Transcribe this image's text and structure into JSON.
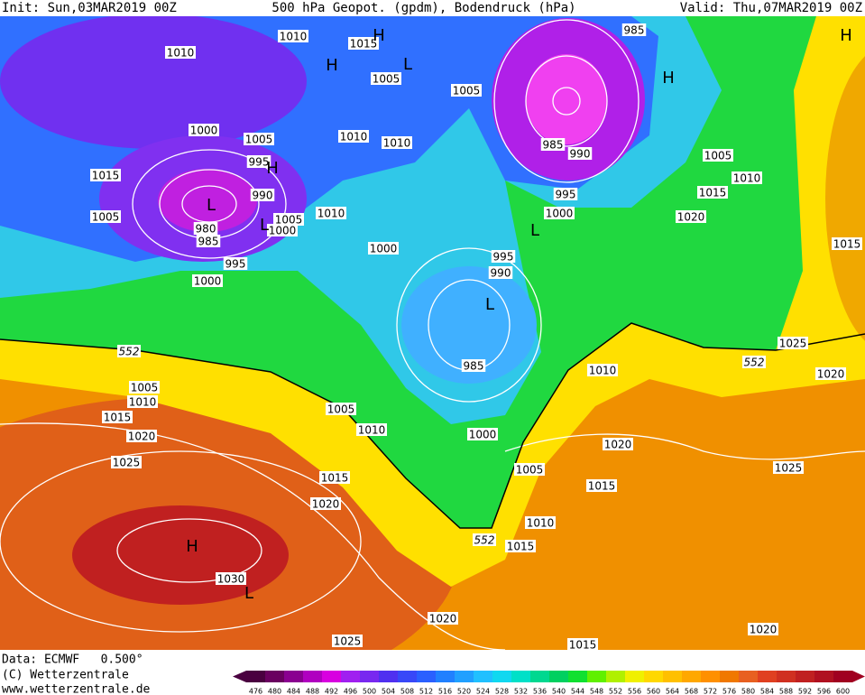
{
  "header": {
    "init": "Init: Sun,03MAR2019 00Z",
    "title": "500 hPa Geopot. (gpdm), Bodendruck (hPa)",
    "valid": "Valid: Thu,07MAR2019 00Z"
  },
  "footer": {
    "data": "Data: ECMWF   0.500°",
    "copyright": "(C) Wetterzentrale",
    "url": "www.wetterzentrale.de"
  },
  "colorbar": {
    "ticks": [
      476,
      480,
      484,
      488,
      492,
      496,
      500,
      504,
      508,
      512,
      516,
      520,
      524,
      528,
      532,
      536,
      540,
      544,
      548,
      552,
      556,
      560,
      564,
      568,
      572,
      576,
      580,
      584,
      588,
      592,
      596,
      600
    ],
    "colors": [
      "#4a0040",
      "#6a0060",
      "#8a0090",
      "#b000c0",
      "#d800e0",
      "#a020f0",
      "#7828f0",
      "#5030f0",
      "#3848f8",
      "#2a60ff",
      "#2080ff",
      "#20a0ff",
      "#20c0ff",
      "#10d8f0",
      "#00e0c8",
      "#00d890",
      "#00d060",
      "#10e030",
      "#60f000",
      "#b0f000",
      "#f0f000",
      "#ffd800",
      "#ffc000",
      "#ffa800",
      "#ff9000",
      "#f07800",
      "#e86020",
      "#e04020",
      "#d03020",
      "#c02020",
      "#b01020",
      "#a00020"
    ]
  },
  "isobar_labels": [
    1010,
    1015,
    1010,
    1005,
    1005,
    985,
    1000,
    1005,
    1010,
    1010,
    995,
    985,
    990,
    1005,
    1015,
    990,
    995,
    1010,
    1015,
    1005,
    1005,
    1000,
    1010,
    1000,
    1020,
    980,
    985,
    1015,
    1000,
    995,
    995,
    990,
    1000,
    1025,
    985,
    1010,
    1020,
    1005,
    1010,
    1015,
    1005,
    1010,
    1020,
    1000,
    1020,
    1025,
    1005,
    1015,
    1015,
    1025,
    1020,
    1010,
    1015,
    1030,
    1020,
    1020,
    1025,
    1015
  ],
  "contour_552_labels": [
    552,
    552,
    552
  ],
  "pressure_centers": [
    "H",
    "H",
    "H",
    "H",
    "H",
    "H",
    "L",
    "L",
    "L",
    "L",
    "L",
    "L"
  ]
}
